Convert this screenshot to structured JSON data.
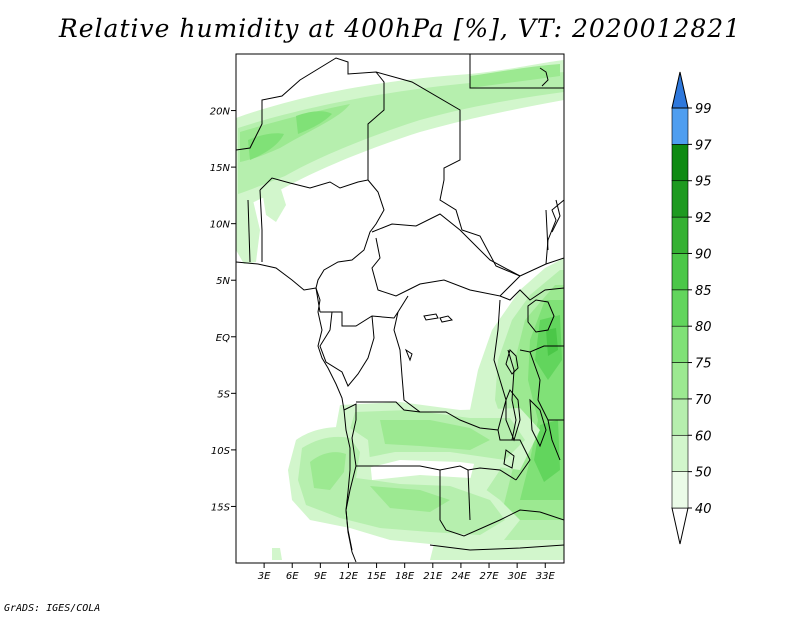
{
  "title": "Relative humidity at 400hPa [%], VT: 2020012821",
  "credit": "GrADS: IGES/COLA",
  "map": {
    "lon_range": [
      0,
      35
    ],
    "lat_range": [
      -20,
      25
    ],
    "lat_ticks": [
      {
        "value": 20,
        "label": "20N"
      },
      {
        "value": 15,
        "label": "15N"
      },
      {
        "value": 10,
        "label": "10N"
      },
      {
        "value": 5,
        "label": "5N"
      },
      {
        "value": 0,
        "label": "EQ"
      },
      {
        "value": -5,
        "label": "5S"
      },
      {
        "value": -10,
        "label": "10S"
      },
      {
        "value": -15,
        "label": "15S"
      }
    ],
    "lon_ticks": [
      {
        "value": 3,
        "label": "3E"
      },
      {
        "value": 6,
        "label": "6E"
      },
      {
        "value": 9,
        "label": "9E"
      },
      {
        "value": 12,
        "label": "12E"
      },
      {
        "value": 15,
        "label": "15E"
      },
      {
        "value": 18,
        "label": "18E"
      },
      {
        "value": 21,
        "label": "21E"
      },
      {
        "value": 24,
        "label": "24E"
      },
      {
        "value": 27,
        "label": "27E"
      },
      {
        "value": 30,
        "label": "30E"
      },
      {
        "value": 33,
        "label": "33E"
      }
    ]
  },
  "colorbar": {
    "levels": [
      {
        "label": "40",
        "color": "#ebfbe8"
      },
      {
        "label": "50",
        "color": "#d2f6cc"
      },
      {
        "label": "60",
        "color": "#b6efae"
      },
      {
        "label": "70",
        "color": "#9ce991"
      },
      {
        "label": "75",
        "color": "#80e177"
      },
      {
        "label": "80",
        "color": "#62d55d"
      },
      {
        "label": "85",
        "color": "#4bc748"
      },
      {
        "label": "90",
        "color": "#35b133"
      },
      {
        "label": "92",
        "color": "#1e9a20"
      },
      {
        "label": "95",
        "color": "#0e8a12"
      },
      {
        "label": "97",
        "color": "#4f9ef0"
      },
      {
        "label": "99",
        "color": "#2e78dc"
      }
    ],
    "min_color": "#ffffff",
    "max_color": "#1f5fc8"
  }
}
